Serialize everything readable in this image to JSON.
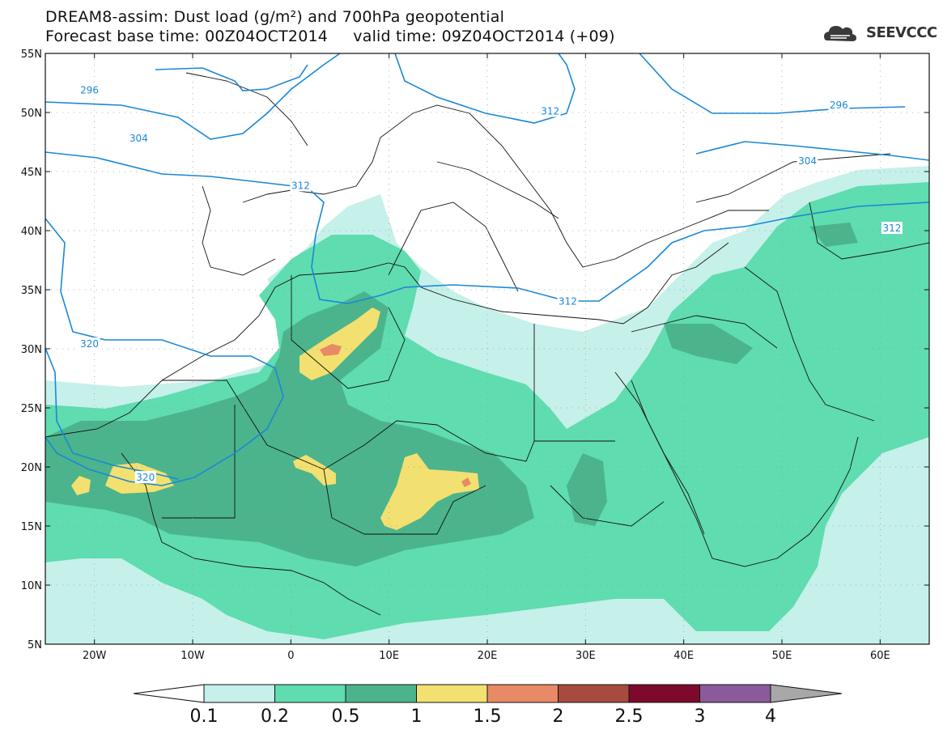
{
  "header": {
    "title_line1": "DREAM8-assim: Dust load (g/m²) and 700hPa geopotential",
    "title_line2": "Forecast base time: 00Z04OCT2014     valid time: 09Z04OCT2014 (+09)"
  },
  "logo": {
    "text": "SEEVCCC",
    "icon": "cloud-icon"
  },
  "map": {
    "lon_range": [
      -25,
      65
    ],
    "lat_range": [
      5,
      55
    ],
    "lat_labels": [
      "55N",
      "50N",
      "45N",
      "40N",
      "35N",
      "30N",
      "25N",
      "20N",
      "15N",
      "10N",
      "5N"
    ],
    "lat_values": [
      55,
      50,
      45,
      40,
      35,
      30,
      25,
      20,
      15,
      10,
      5
    ],
    "lon_labels": [
      "20W",
      "10W",
      "0",
      "10E",
      "20E",
      "30E",
      "40E",
      "50E",
      "60E"
    ],
    "lon_values": [
      -20,
      -10,
      0,
      10,
      20,
      30,
      40,
      50,
      60
    ],
    "contour_color": "#1a88d6",
    "contour_labels": [
      {
        "text": "296",
        "lon": -20.5,
        "lat": 51.9
      },
      {
        "text": "296",
        "lon": 55.8,
        "lat": 50.6
      },
      {
        "text": "304",
        "lon": -15.5,
        "lat": 47.8
      },
      {
        "text": "312",
        "lon": 1.0,
        "lat": 43.8
      },
      {
        "text": "312",
        "lon": 26.4,
        "lat": 50.1
      },
      {
        "text": "312",
        "lon": 28.2,
        "lat": 34.0
      },
      {
        "text": "304",
        "lon": 52.6,
        "lat": 45.9
      },
      {
        "text": "312",
        "lon": 61.2,
        "lat": 40.2
      },
      {
        "text": "320",
        "lon": -20.5,
        "lat": 30.4
      },
      {
        "text": "320",
        "lon": -14.8,
        "lat": 19.1
      }
    ]
  },
  "colorbar": {
    "labels": [
      "0.1",
      "0.2",
      "0.5",
      "1",
      "1.5",
      "2",
      "2.5",
      "3",
      "4"
    ],
    "colors": [
      "#c6f0ea",
      "#5fdcb0",
      "#4cb48c",
      "#f2e070",
      "#e88a66",
      "#a84a3e",
      "#7d0a2c",
      "#8a5a9a"
    ],
    "under_color": "#ffffff",
    "over_color": "#a8a8a8"
  }
}
